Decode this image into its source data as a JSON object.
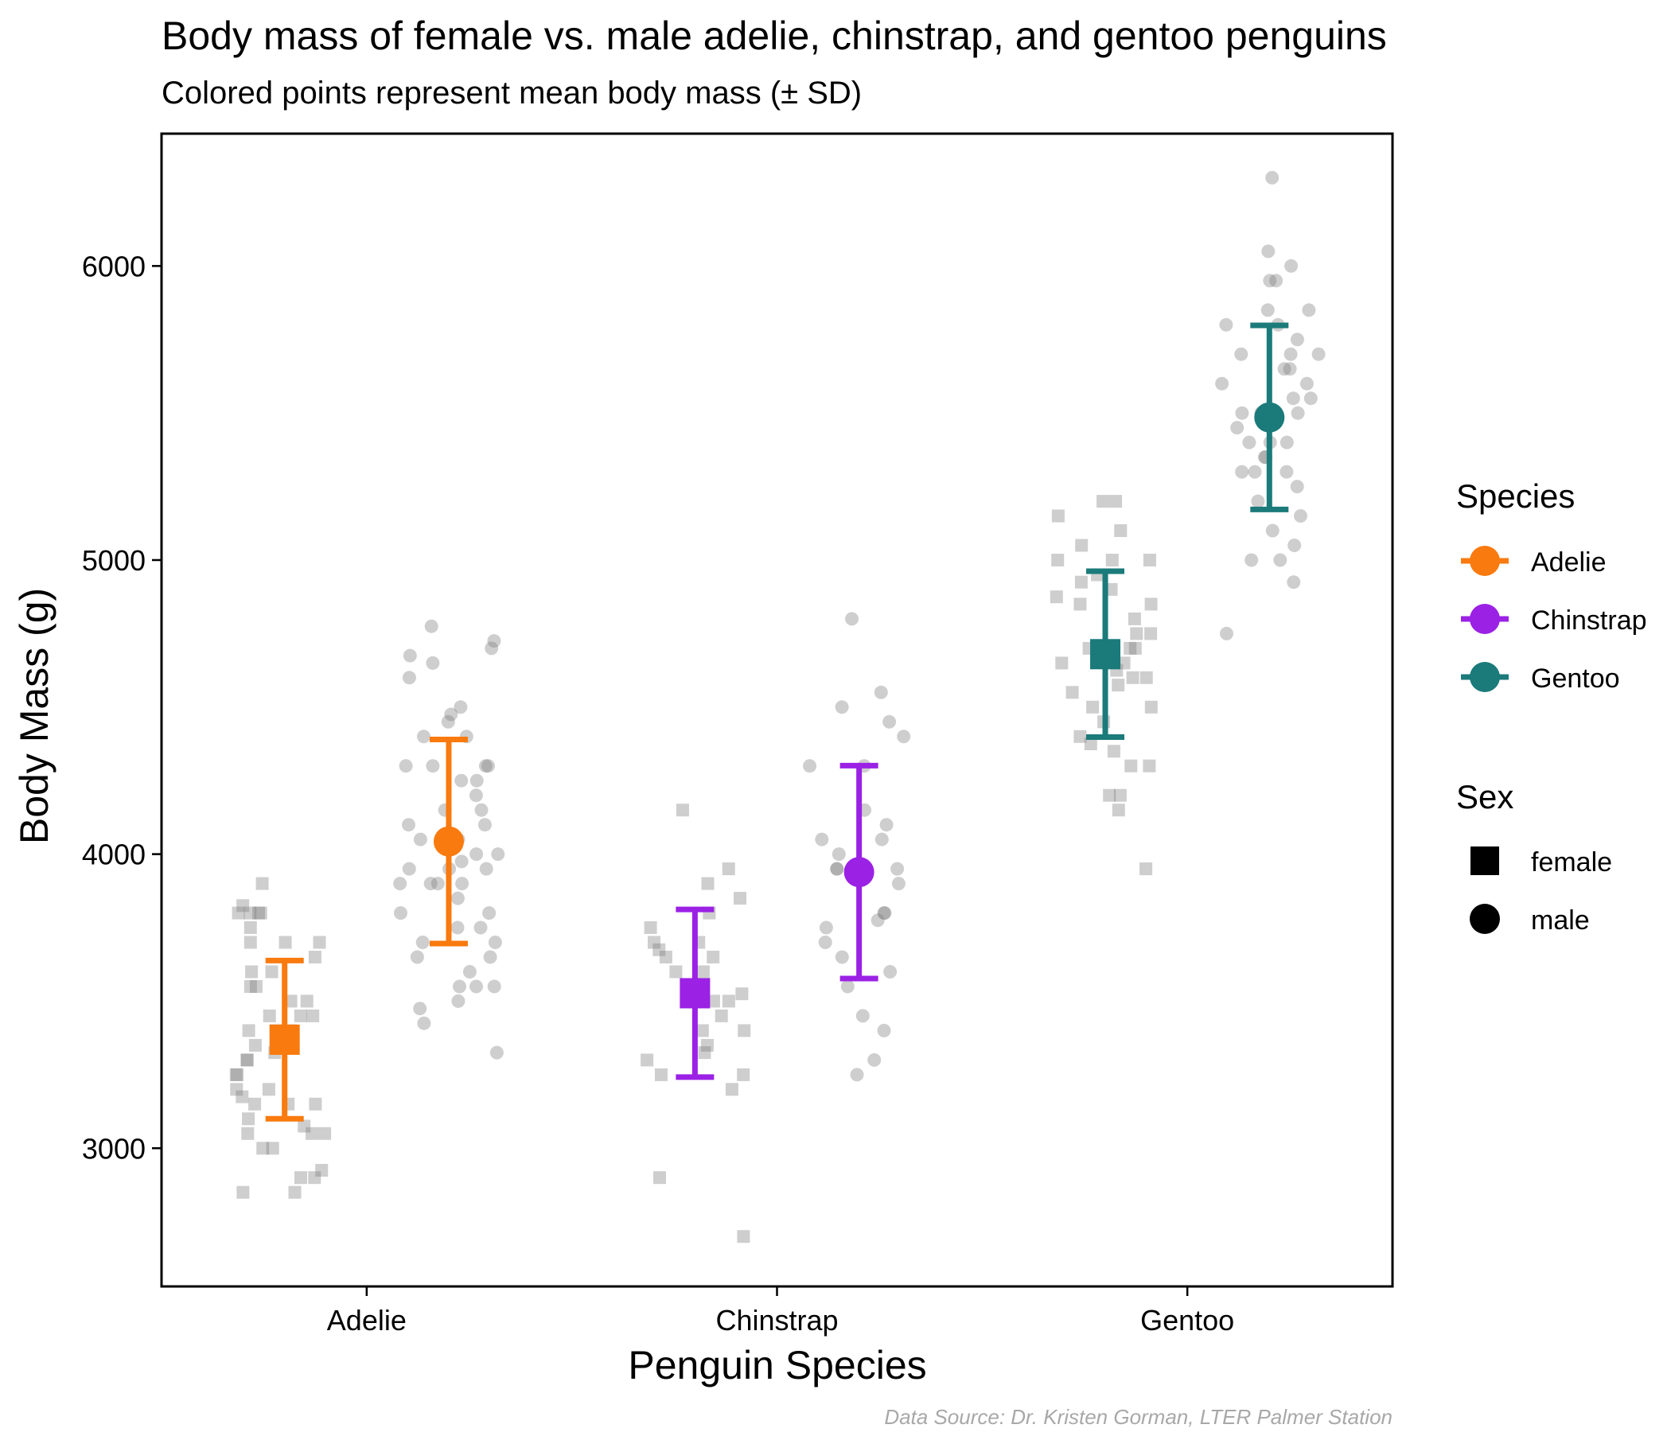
{
  "chart_data": {
    "type": "scatter",
    "title": "Body mass of female vs. male adelie, chinstrap, and gentoo penguins",
    "subtitle": "Colored points represent mean body mass (± SD)",
    "xlabel": "Penguin Species",
    "ylabel": "Body Mass (g)",
    "caption": "Data Source: Dr. Kristen Gorman, LTER Palmer Station",
    "categories": [
      "Adelie",
      "Chinstrap",
      "Gentoo"
    ],
    "ylim": [
      2530,
      6450
    ],
    "yticks": [
      3000,
      4000,
      5000,
      6000
    ],
    "grid": false,
    "legend_position": "right",
    "legend": {
      "species_title": "Species",
      "species": [
        {
          "name": "Adelie",
          "color": "#F97A0E"
        },
        {
          "name": "Chinstrap",
          "color": "#9B21E5"
        },
        {
          "name": "Gentoo",
          "color": "#1B7A7A"
        }
      ],
      "sex_title": "Sex",
      "sex": [
        {
          "name": "female",
          "shape": "square"
        },
        {
          "name": "male",
          "shape": "circle"
        }
      ]
    },
    "summary": [
      {
        "species": "Adelie",
        "sex": "female",
        "mean": 3369,
        "sd": 269
      },
      {
        "species": "Adelie",
        "sex": "male",
        "mean": 4043,
        "sd": 347
      },
      {
        "species": "Chinstrap",
        "sex": "female",
        "mean": 3527,
        "sd": 285
      },
      {
        "species": "Chinstrap",
        "sex": "male",
        "mean": 3939,
        "sd": 362
      },
      {
        "species": "Gentoo",
        "sex": "female",
        "mean": 4680,
        "sd": 282
      },
      {
        "species": "Gentoo",
        "sex": "male",
        "mean": 5485,
        "sd": 313
      }
    ],
    "raw_points": [
      {
        "species": "Adelie",
        "sex": "female",
        "values": [
          3900,
          3825,
          3800,
          3800,
          3800,
          3800,
          3750,
          3700,
          3700,
          3700,
          3650,
          3600,
          3600,
          3550,
          3550,
          3500,
          3500,
          3450,
          3450,
          3450,
          3400,
          3400,
          3400,
          3350,
          3325,
          3300,
          3300,
          3250,
          3250,
          3200,
          3200,
          3175,
          3150,
          3150,
          3150,
          3100,
          3075,
          3050,
          3050,
          3050,
          3000,
          3000,
          2925,
          2900,
          2900,
          2850,
          2850
        ]
      },
      {
        "species": "Adelie",
        "sex": "male",
        "values": [
          4775,
          4725,
          4700,
          4675,
          4650,
          4600,
          4500,
          4475,
          4450,
          4400,
          4400,
          4300,
          4300,
          4300,
          4300,
          4250,
          4250,
          4200,
          4150,
          4150,
          4100,
          4100,
          4050,
          4050,
          4000,
          4000,
          3975,
          3950,
          3950,
          3950,
          3900,
          3900,
          3900,
          3900,
          3850,
          3800,
          3800,
          3750,
          3750,
          3700,
          3700,
          3650,
          3650,
          3600,
          3550,
          3550,
          3550,
          3500,
          3475,
          3425,
          3325
        ]
      },
      {
        "species": "Chinstrap",
        "sex": "female",
        "values": [
          4150,
          3950,
          3900,
          3850,
          3800,
          3750,
          3700,
          3700,
          3675,
          3650,
          3650,
          3600,
          3600,
          3550,
          3525,
          3500,
          3500,
          3450,
          3400,
          3400,
          3350,
          3325,
          3300,
          3250,
          3250,
          3200,
          2900,
          2700
        ]
      },
      {
        "species": "Chinstrap",
        "sex": "male",
        "values": [
          4800,
          4550,
          4500,
          4450,
          4400,
          4300,
          4300,
          4150,
          4100,
          4050,
          4050,
          4000,
          3950,
          3950,
          3950,
          3900,
          3800,
          3800,
          3775,
          3750,
          3700,
          3650,
          3600,
          3550,
          3450,
          3400,
          3300,
          3250
        ]
      },
      {
        "species": "Gentoo",
        "sex": "female",
        "values": [
          5200,
          5200,
          5150,
          5100,
          5050,
          5000,
          5000,
          5000,
          4950,
          4925,
          4900,
          4875,
          4850,
          4850,
          4800,
          4750,
          4750,
          4700,
          4700,
          4700,
          4650,
          4650,
          4625,
          4600,
          4600,
          4575,
          4550,
          4500,
          4500,
          4450,
          4400,
          4375,
          4350,
          4300,
          4300,
          4200,
          4200,
          4150,
          3950
        ]
      },
      {
        "species": "Gentoo",
        "sex": "male",
        "values": [
          6300,
          6050,
          6000,
          5950,
          5950,
          5850,
          5850,
          5800,
          5800,
          5750,
          5700,
          5700,
          5700,
          5650,
          5650,
          5600,
          5600,
          5550,
          5550,
          5500,
          5500,
          5500,
          5500,
          5450,
          5400,
          5400,
          5400,
          5350,
          5350,
          5300,
          5300,
          5300,
          5250,
          5200,
          5150,
          5100,
          5050,
          5000,
          5000,
          4925,
          4750
        ]
      }
    ]
  }
}
